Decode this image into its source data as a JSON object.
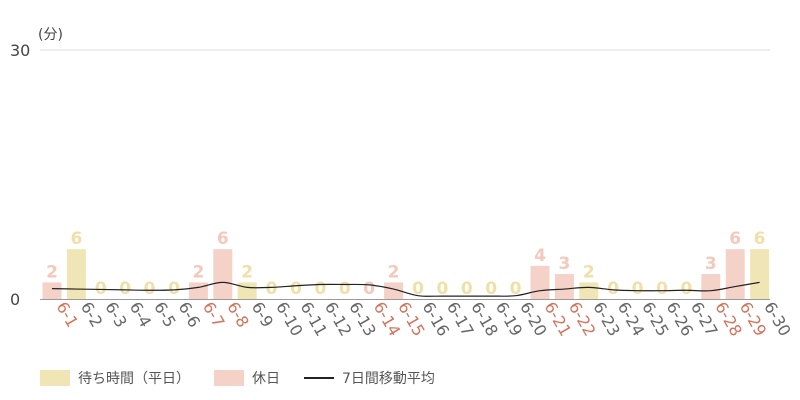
{
  "colors": {
    "weekday": "#f0e5b4",
    "holiday": "#f5d2c7",
    "avg_line": "#222222",
    "weekday_label": "#f0e0a8",
    "holiday_label": "#f2c9bb",
    "weekday_tick": "#666666",
    "holiday_tick": "#d4725a",
    "grid": "#dddddd",
    "axis_text": "#444444"
  },
  "chart_data": {
    "type": "bar",
    "unit_label": "(分)",
    "ylim": [
      0,
      30
    ],
    "yticks": [
      0,
      30
    ],
    "categories": [
      "6-1",
      "6-2",
      "6-3",
      "6-4",
      "6-5",
      "6-6",
      "6-7",
      "6-8",
      "6-9",
      "6-10",
      "6-11",
      "6-12",
      "6-13",
      "6-14",
      "6-15",
      "6-16",
      "6-17",
      "6-18",
      "6-19",
      "6-20",
      "6-21",
      "6-22",
      "6-23",
      "6-24",
      "6-25",
      "6-26",
      "6-27",
      "6-28",
      "6-29",
      "6-30"
    ],
    "day_type": [
      "holiday",
      "weekday",
      "weekday",
      "weekday",
      "weekday",
      "weekday",
      "holiday",
      "holiday",
      "weekday",
      "weekday",
      "weekday",
      "weekday",
      "weekday",
      "holiday",
      "holiday",
      "weekday",
      "weekday",
      "weekday",
      "weekday",
      "weekday",
      "holiday",
      "holiday",
      "weekday",
      "weekday",
      "weekday",
      "weekday",
      "weekday",
      "holiday",
      "holiday",
      "weekday"
    ],
    "values": [
      2,
      6,
      0,
      0,
      0,
      0,
      2,
      6,
      2,
      0,
      0,
      0,
      0,
      0,
      2,
      0,
      0,
      0,
      0,
      0,
      4,
      3,
      2,
      0,
      0,
      0,
      0,
      3,
      6,
      6
    ],
    "moving_average": [
      1.25,
      1.2,
      1.15,
      1.1,
      1.05,
      1.1,
      1.4,
      2.0,
      1.4,
      1.4,
      1.6,
      1.75,
      1.75,
      1.7,
      1.2,
      0.4,
      0.35,
      0.35,
      0.35,
      0.4,
      1.0,
      1.2,
      1.4,
      1.1,
      1.0,
      1.0,
      1.05,
      1.0,
      1.5,
      2.0
    ],
    "legend": [
      {
        "label": "待ち時間（平日）",
        "kind": "weekday"
      },
      {
        "label": "休日",
        "kind": "holiday"
      },
      {
        "label": "7日間移動平均",
        "kind": "line"
      }
    ]
  }
}
